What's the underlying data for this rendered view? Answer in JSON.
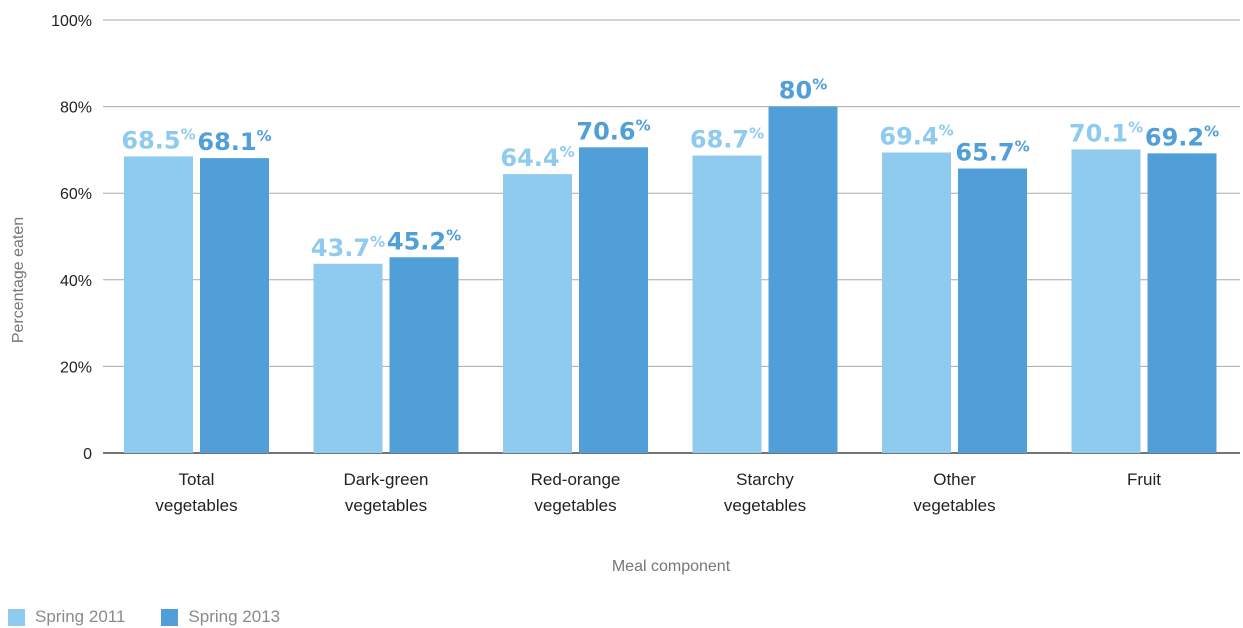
{
  "chart_data": {
    "type": "bar",
    "categories": [
      [
        "Total",
        "vegetables"
      ],
      [
        "Dark-green",
        "vegetables"
      ],
      [
        "Red-orange",
        "vegetables"
      ],
      [
        "Starchy",
        "vegetables"
      ],
      [
        "Other",
        "vegetables"
      ],
      [
        "Fruit"
      ]
    ],
    "series": [
      {
        "name": "Spring 2011",
        "color": "#8ecbef",
        "values": [
          68.5,
          43.7,
          64.4,
          68.7,
          69.4,
          70.1
        ],
        "labels": [
          "68.5",
          "43.7",
          "64.4",
          "68.7",
          "69.4",
          "70.1"
        ]
      },
      {
        "name": "Spring 2013",
        "color": "#509fd8",
        "values": [
          68.1,
          45.2,
          70.6,
          80,
          65.7,
          69.2
        ],
        "labels": [
          "68.1",
          "45.2",
          "70.6",
          "80",
          "65.7",
          "69.2"
        ]
      }
    ],
    "value_suffix": "%",
    "xlabel": "Meal component",
    "ylabel": "Percentage eaten",
    "ylim": [
      0,
      100
    ],
    "yticks": [
      {
        "value": 0,
        "label": "0"
      },
      {
        "value": 20,
        "label": "20%"
      },
      {
        "value": 40,
        "label": "40%"
      },
      {
        "value": 60,
        "label": "60%"
      },
      {
        "value": 80,
        "label": "80%"
      },
      {
        "value": 100,
        "label": "100%"
      }
    ],
    "grid": true,
    "legend_position": "bottom-left",
    "colors": {
      "gridline": "#aaaaaa",
      "axis": "#222222"
    }
  }
}
